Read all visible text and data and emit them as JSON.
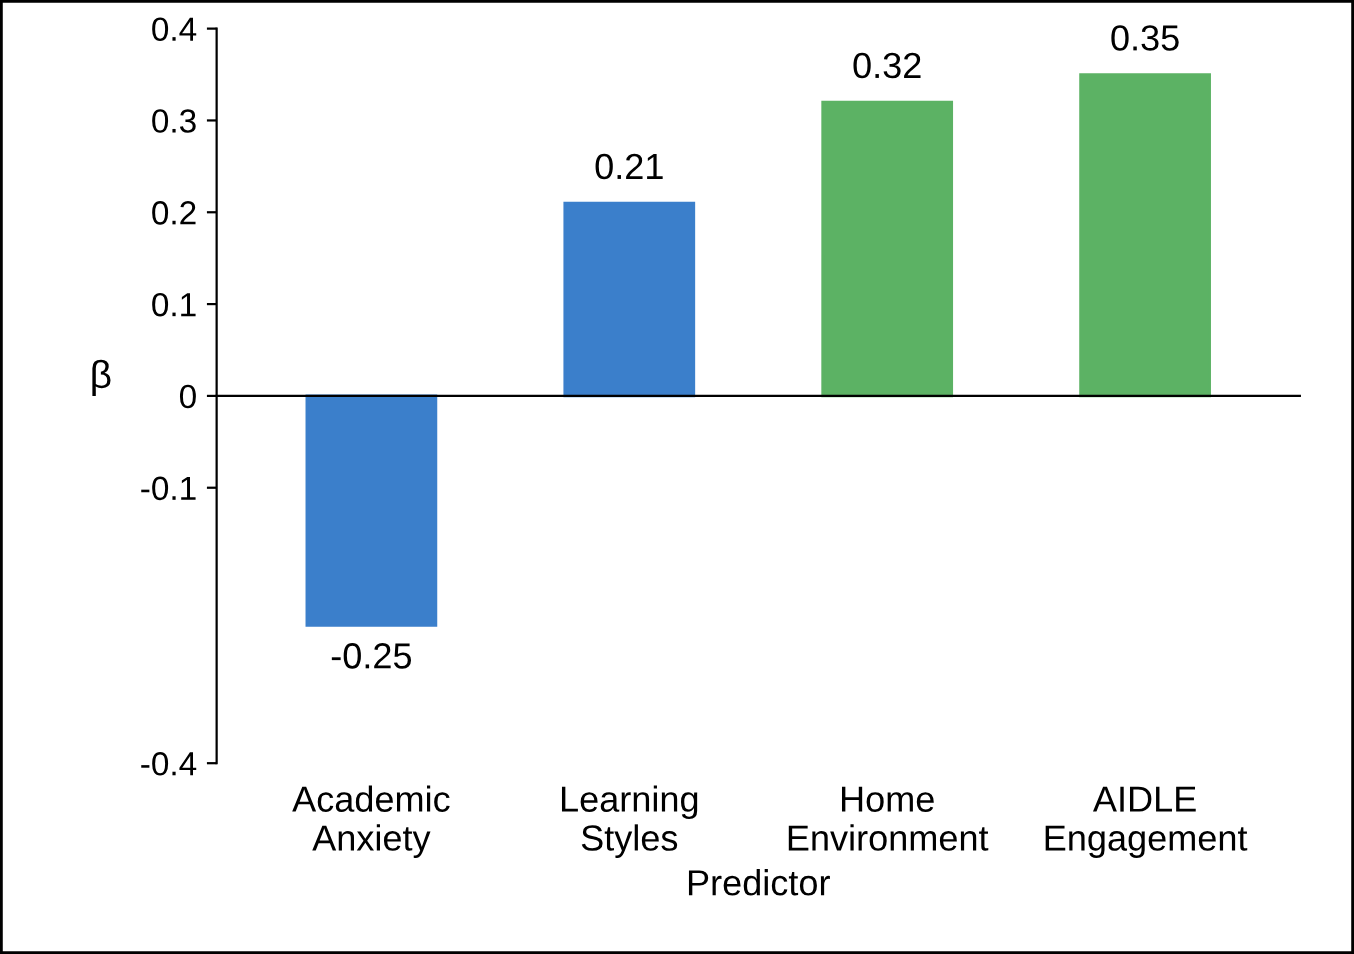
{
  "chart_data": {
    "type": "bar",
    "xlabel": "Predictor",
    "ylabel": "β",
    "categories": [
      "Academic\nAnxiety",
      "Learning\nStyles",
      "Home\nEnvironment",
      "AIDLE\nEngagement"
    ],
    "values": [
      -0.25,
      0.21,
      0.32,
      0.35
    ],
    "colors": [
      "#3b7fcb",
      "#3b7fcb",
      "#5cb264",
      "#5cb264"
    ],
    "ylim": [
      -0.4,
      0.4
    ],
    "yticks": [
      -0.4,
      -0.1,
      0,
      0.1,
      0.2,
      0.3,
      0.4
    ],
    "data_labels": true
  }
}
